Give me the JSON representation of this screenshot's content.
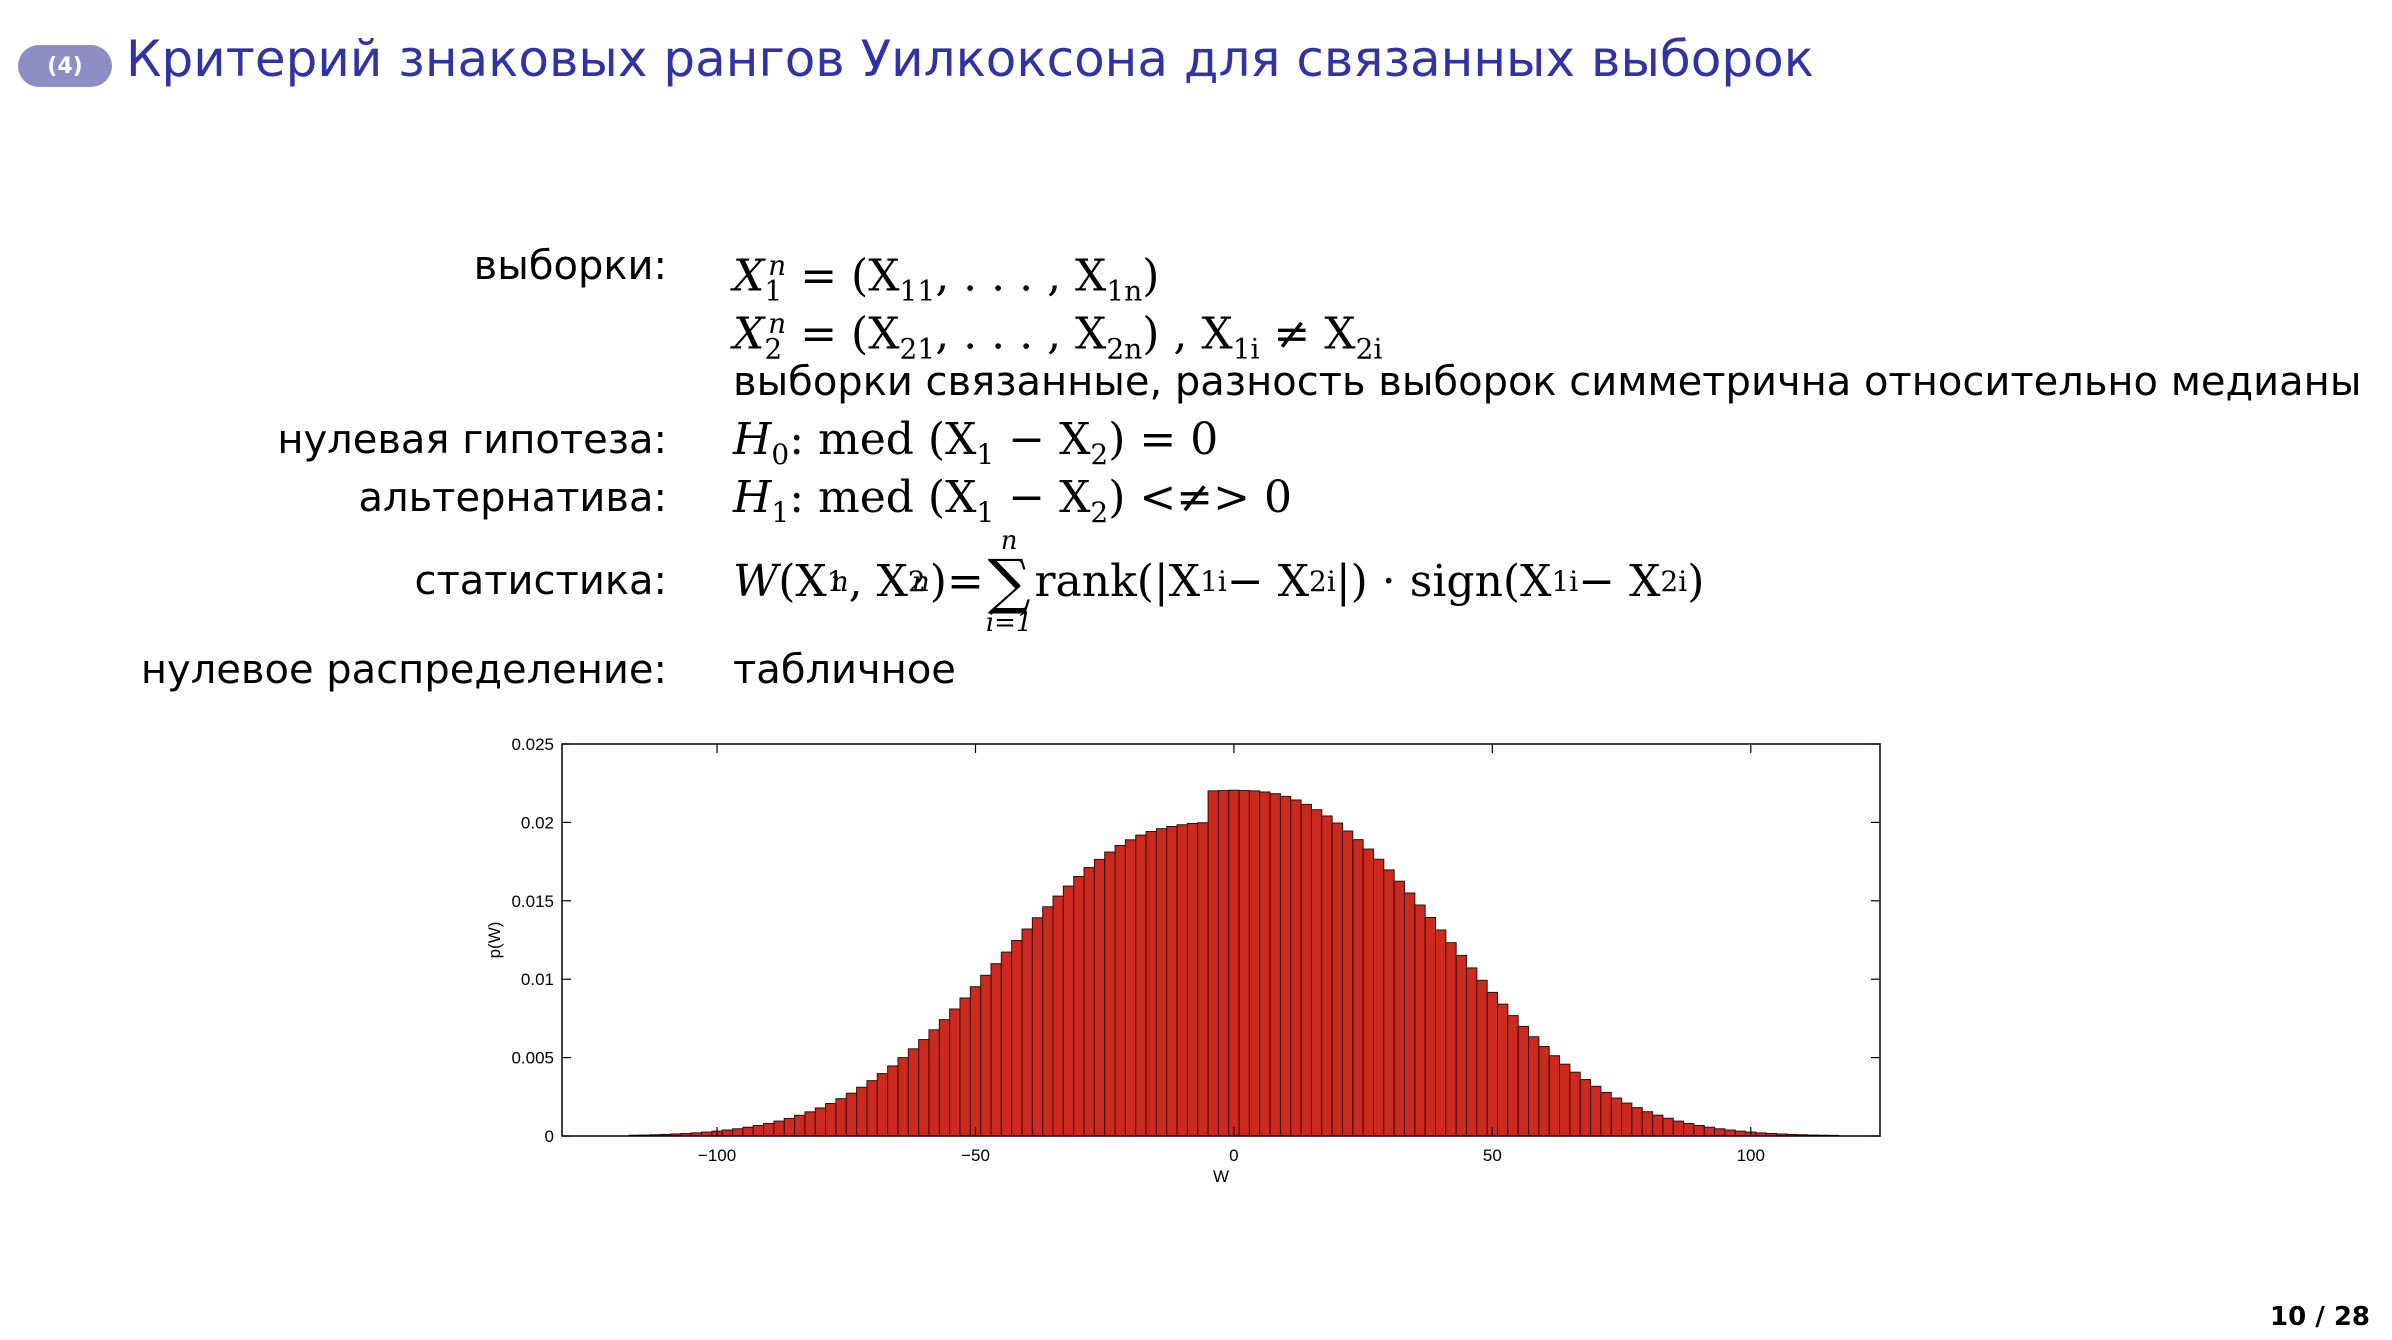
{
  "header": {
    "badge": "(4)",
    "title": "Критерий знаковых рангов Уилкоксона для связанных выборок"
  },
  "rows": {
    "samples_label": "выборки:",
    "samples_formula_1": {
      "X": "X",
      "sub": "1",
      "sup": "n",
      "rest": " = (X",
      "a": "11",
      "b": ", . . . , X",
      "c": "1n",
      "d": ")"
    },
    "samples_formula_2": {
      "X": "X",
      "sub": "2",
      "sup": "n",
      "rest": " = (X",
      "a": "21",
      "b": ", . . . , X",
      "c": "2n",
      "d": ") , X",
      "e": "1i",
      "f": " ≠ X",
      "g": "2i"
    },
    "samples_note": "выборки связанные, разность выборок симметрична относительно медианы",
    "null_label": "нулевая гипотеза:",
    "null_formula": {
      "H": "H",
      "sub": "0",
      "rest": ":  med (X",
      "a": "1",
      "b": " − X",
      "c": "2",
      "d": ") = 0"
    },
    "alt_label": "альтернатива:",
    "alt_formula": {
      "H": "H",
      "sub": "1",
      "rest": ":  med (X",
      "a": "1",
      "b": " − X",
      "c": "2",
      "d": ") <≠> 0"
    },
    "stat_label": "статистика:",
    "stat_formula": {
      "W": "W",
      "p1": "(X",
      "s1": "1",
      "u1": "n",
      "p2": ", X",
      "s2": "2",
      "u2": "n",
      "p3": ")=",
      "sum_top": "n",
      "sum_sigma": "∑",
      "sum_bottom": "i=1",
      "p4": "rank(|X",
      "s3": "1i",
      "p5": " − X",
      "s4": "2i",
      "p6": "|) · sign(X",
      "s5": "1i",
      "p7": " − X",
      "s6": "2i",
      "p8": ")"
    },
    "dist_label": "нулевое распределение:",
    "dist_value": "табличное"
  },
  "chart_data": {
    "type": "bar",
    "xlabel": "W",
    "ylabel": "p(W)",
    "xlim": [
      -130,
      125
    ],
    "ylim": [
      0,
      0.025
    ],
    "xticks": [
      -100,
      -50,
      0,
      50,
      100
    ],
    "xtick_labels": [
      "−100",
      "−50",
      "0",
      "50",
      "100"
    ],
    "yticks": [
      0,
      0.005,
      0.01,
      0.015,
      0.02,
      0.025
    ],
    "ytick_labels": [
      "0",
      "0.005",
      "0.01",
      "0.015",
      "0.02",
      "0.025"
    ],
    "bar_color": "#cc2a1e",
    "bar_edge_color": "#3a0a06",
    "grid": false,
    "x": [
      -116,
      -114,
      -112,
      -110,
      -108,
      -106,
      -104,
      -102,
      -100,
      -98,
      -96,
      -94,
      -92,
      -90,
      -88,
      -86,
      -84,
      -82,
      -80,
      -78,
      -76,
      -74,
      -72,
      -70,
      -68,
      -66,
      -64,
      -62,
      -60,
      -58,
      -56,
      -54,
      -52,
      -50,
      -48,
      -46,
      -44,
      -42,
      -40,
      -38,
      -36,
      -34,
      -32,
      -30,
      -28,
      -26,
      -24,
      -22,
      -20,
      -18,
      -16,
      -14,
      -12,
      -10,
      -8,
      -6,
      -4,
      -2,
      0,
      2,
      4,
      6,
      8,
      10,
      12,
      14,
      16,
      18,
      20,
      22,
      24,
      26,
      28,
      30,
      32,
      34,
      36,
      38,
      40,
      42,
      44,
      46,
      48,
      50,
      52,
      54,
      56,
      58,
      60,
      62,
      64,
      66,
      68,
      70,
      72,
      74,
      76,
      78,
      80,
      82,
      84,
      86,
      88,
      90,
      92,
      94,
      96,
      98,
      100,
      102,
      104,
      106,
      108,
      110,
      112,
      114,
      116
    ],
    "values": [
      5e-05,
      6e-05,
      8e-05,
      0.0001,
      0.00013,
      0.00016,
      0.0002,
      0.00025,
      0.00031,
      0.00038,
      0.00046,
      0.00056,
      0.00067,
      0.0008,
      0.00095,
      0.00112,
      0.00132,
      0.00154,
      0.00179,
      0.00207,
      0.00238,
      0.00273,
      0.00311,
      0.00353,
      0.00398,
      0.00447,
      0.005,
      0.00556,
      0.00615,
      0.00677,
      0.00742,
      0.0081,
      0.0088,
      0.00952,
      0.01025,
      0.01099,
      0.01173,
      0.01247,
      0.0132,
      0.01392,
      0.01462,
      0.0153,
      0.01594,
      0.01655,
      0.01712,
      0.01764,
      0.01811,
      0.01853,
      0.01889,
      0.01919,
      0.01942,
      0.0196,
      0.01974,
      0.01985,
      0.01993,
      0.01998,
      0.02201,
      0.02203,
      0.02205,
      0.02203,
      0.02201,
      0.02194,
      0.02183,
      0.02166,
      0.02143,
      0.02115,
      0.02081,
      0.02041,
      0.01996,
      0.01945,
      0.0189,
      0.0183,
      0.01765,
      0.01697,
      0.01625,
      0.0155,
      0.01473,
      0.01394,
      0.01314,
      0.01233,
      0.01152,
      0.01072,
      0.00993,
      0.00916,
      0.00841,
      0.00768,
      0.00699,
      0.00633,
      0.00571,
      0.00512,
      0.00458,
      0.00407,
      0.0036,
      0.00317,
      0.00278,
      0.00242,
      0.0021,
      0.00181,
      0.00155,
      0.00133,
      0.00113,
      0.00095,
      0.0008,
      0.00067,
      0.00056,
      0.00046,
      0.00038,
      0.00031,
      0.00025,
      0.0002,
      0.00016,
      0.00013,
      0.0001,
      8e-05,
      6e-05,
      5e-05,
      4e-05
    ]
  },
  "footer": {
    "page": "10 / 28"
  }
}
